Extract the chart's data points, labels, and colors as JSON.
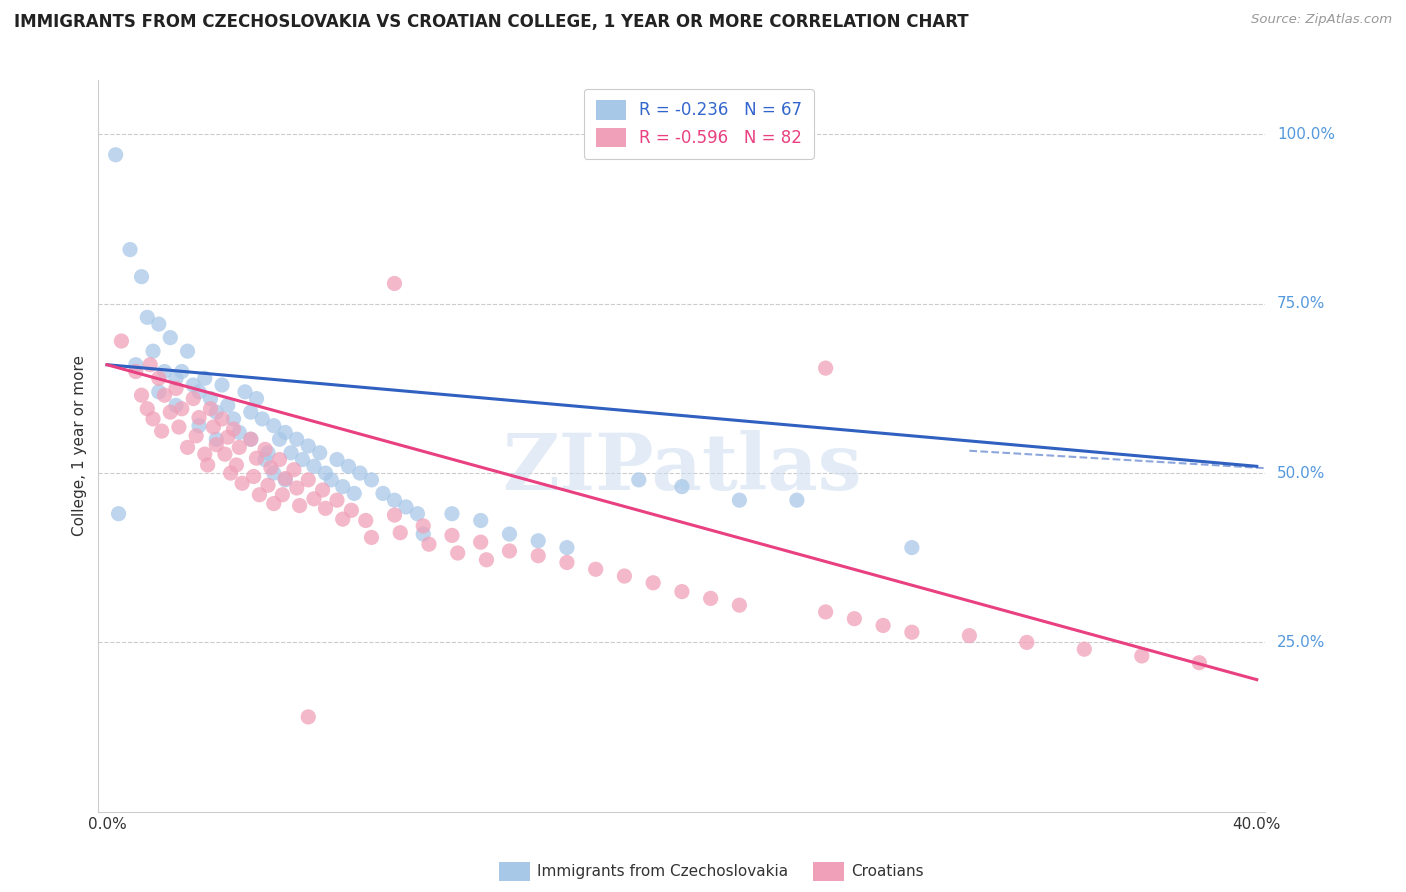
{
  "title": "IMMIGRANTS FROM CZECHOSLOVAKIA VS CROATIAN COLLEGE, 1 YEAR OR MORE CORRELATION CHART",
  "source": "Source: ZipAtlas.com",
  "ylabel": "College, 1 year or more",
  "right_yticks": [
    "100.0%",
    "75.0%",
    "50.0%",
    "25.0%"
  ],
  "right_ytick_vals": [
    1.0,
    0.75,
    0.5,
    0.25
  ],
  "xlim": [
    0.0,
    0.4
  ],
  "ylim": [
    0.0,
    1.08
  ],
  "legend_blue_r": "-0.236",
  "legend_blue_n": "67",
  "legend_pink_r": "-0.596",
  "legend_pink_n": "82",
  "blue_color": "#a8c8e8",
  "pink_color": "#f0a0b8",
  "blue_line_color": "#3060c0",
  "pink_line_color": "#e84080",
  "watermark": "ZIPatlas",
  "blue_scatter": [
    [
      0.003,
      0.97
    ],
    [
      0.008,
      0.83
    ],
    [
      0.012,
      0.79
    ],
    [
      0.014,
      0.73
    ],
    [
      0.018,
      0.72
    ],
    [
      0.016,
      0.68
    ],
    [
      0.01,
      0.66
    ],
    [
      0.022,
      0.7
    ],
    [
      0.02,
      0.65
    ],
    [
      0.024,
      0.64
    ],
    [
      0.018,
      0.62
    ],
    [
      0.028,
      0.68
    ],
    [
      0.026,
      0.65
    ],
    [
      0.03,
      0.63
    ],
    [
      0.024,
      0.6
    ],
    [
      0.032,
      0.62
    ],
    [
      0.034,
      0.64
    ],
    [
      0.036,
      0.61
    ],
    [
      0.038,
      0.59
    ],
    [
      0.032,
      0.57
    ],
    [
      0.04,
      0.63
    ],
    [
      0.042,
      0.6
    ],
    [
      0.044,
      0.58
    ],
    [
      0.038,
      0.55
    ],
    [
      0.048,
      0.62
    ],
    [
      0.05,
      0.59
    ],
    [
      0.046,
      0.56
    ],
    [
      0.052,
      0.61
    ],
    [
      0.054,
      0.58
    ],
    [
      0.05,
      0.55
    ],
    [
      0.056,
      0.53
    ],
    [
      0.058,
      0.57
    ],
    [
      0.06,
      0.55
    ],
    [
      0.055,
      0.52
    ],
    [
      0.062,
      0.56
    ],
    [
      0.064,
      0.53
    ],
    [
      0.058,
      0.5
    ],
    [
      0.066,
      0.55
    ],
    [
      0.068,
      0.52
    ],
    [
      0.062,
      0.49
    ],
    [
      0.07,
      0.54
    ],
    [
      0.072,
      0.51
    ],
    [
      0.074,
      0.53
    ],
    [
      0.076,
      0.5
    ],
    [
      0.08,
      0.52
    ],
    [
      0.078,
      0.49
    ],
    [
      0.084,
      0.51
    ],
    [
      0.082,
      0.48
    ],
    [
      0.088,
      0.5
    ],
    [
      0.086,
      0.47
    ],
    [
      0.092,
      0.49
    ],
    [
      0.096,
      0.47
    ],
    [
      0.1,
      0.46
    ],
    [
      0.104,
      0.45
    ],
    [
      0.108,
      0.44
    ],
    [
      0.11,
      0.41
    ],
    [
      0.12,
      0.44
    ],
    [
      0.13,
      0.43
    ],
    [
      0.14,
      0.41
    ],
    [
      0.15,
      0.4
    ],
    [
      0.16,
      0.39
    ],
    [
      0.185,
      0.49
    ],
    [
      0.2,
      0.48
    ],
    [
      0.22,
      0.46
    ],
    [
      0.24,
      0.46
    ],
    [
      0.28,
      0.39
    ],
    [
      0.004,
      0.44
    ]
  ],
  "pink_scatter": [
    [
      0.005,
      0.695
    ],
    [
      0.01,
      0.65
    ],
    [
      0.012,
      0.615
    ],
    [
      0.015,
      0.66
    ],
    [
      0.014,
      0.595
    ],
    [
      0.016,
      0.58
    ],
    [
      0.018,
      0.64
    ],
    [
      0.02,
      0.615
    ],
    [
      0.022,
      0.59
    ],
    [
      0.019,
      0.562
    ],
    [
      0.024,
      0.625
    ],
    [
      0.026,
      0.595
    ],
    [
      0.025,
      0.568
    ],
    [
      0.028,
      0.538
    ],
    [
      0.03,
      0.61
    ],
    [
      0.032,
      0.582
    ],
    [
      0.031,
      0.555
    ],
    [
      0.034,
      0.528
    ],
    [
      0.036,
      0.595
    ],
    [
      0.037,
      0.568
    ],
    [
      0.038,
      0.542
    ],
    [
      0.035,
      0.512
    ],
    [
      0.04,
      0.58
    ],
    [
      0.042,
      0.553
    ],
    [
      0.041,
      0.528
    ],
    [
      0.043,
      0.5
    ],
    [
      0.044,
      0.565
    ],
    [
      0.046,
      0.538
    ],
    [
      0.045,
      0.512
    ],
    [
      0.047,
      0.485
    ],
    [
      0.05,
      0.55
    ],
    [
      0.052,
      0.522
    ],
    [
      0.051,
      0.495
    ],
    [
      0.053,
      0.468
    ],
    [
      0.055,
      0.535
    ],
    [
      0.057,
      0.508
    ],
    [
      0.056,
      0.482
    ],
    [
      0.058,
      0.455
    ],
    [
      0.06,
      0.52
    ],
    [
      0.062,
      0.492
    ],
    [
      0.061,
      0.468
    ],
    [
      0.065,
      0.505
    ],
    [
      0.066,
      0.478
    ],
    [
      0.067,
      0.452
    ],
    [
      0.07,
      0.49
    ],
    [
      0.072,
      0.462
    ],
    [
      0.075,
      0.475
    ],
    [
      0.076,
      0.448
    ],
    [
      0.08,
      0.46
    ],
    [
      0.082,
      0.432
    ],
    [
      0.085,
      0.445
    ],
    [
      0.09,
      0.43
    ],
    [
      0.092,
      0.405
    ],
    [
      0.1,
      0.438
    ],
    [
      0.102,
      0.412
    ],
    [
      0.11,
      0.422
    ],
    [
      0.112,
      0.395
    ],
    [
      0.12,
      0.408
    ],
    [
      0.122,
      0.382
    ],
    [
      0.13,
      0.398
    ],
    [
      0.132,
      0.372
    ],
    [
      0.14,
      0.385
    ],
    [
      0.15,
      0.378
    ],
    [
      0.16,
      0.368
    ],
    [
      0.17,
      0.358
    ],
    [
      0.18,
      0.348
    ],
    [
      0.19,
      0.338
    ],
    [
      0.2,
      0.325
    ],
    [
      0.21,
      0.315
    ],
    [
      0.22,
      0.305
    ],
    [
      0.25,
      0.295
    ],
    [
      0.26,
      0.285
    ],
    [
      0.27,
      0.275
    ],
    [
      0.28,
      0.265
    ],
    [
      0.3,
      0.26
    ],
    [
      0.32,
      0.25
    ],
    [
      0.34,
      0.24
    ],
    [
      0.36,
      0.23
    ],
    [
      0.38,
      0.22
    ],
    [
      0.1,
      0.78
    ],
    [
      0.25,
      0.655
    ],
    [
      0.07,
      0.14
    ]
  ],
  "blue_line": [
    [
      0.0,
      0.66
    ],
    [
      0.4,
      0.51
    ]
  ],
  "pink_line": [
    [
      0.0,
      0.66
    ],
    [
      0.4,
      0.195
    ]
  ],
  "blue_dash_line": [
    [
      0.3,
      0.533
    ],
    [
      0.46,
      0.493
    ]
  ]
}
